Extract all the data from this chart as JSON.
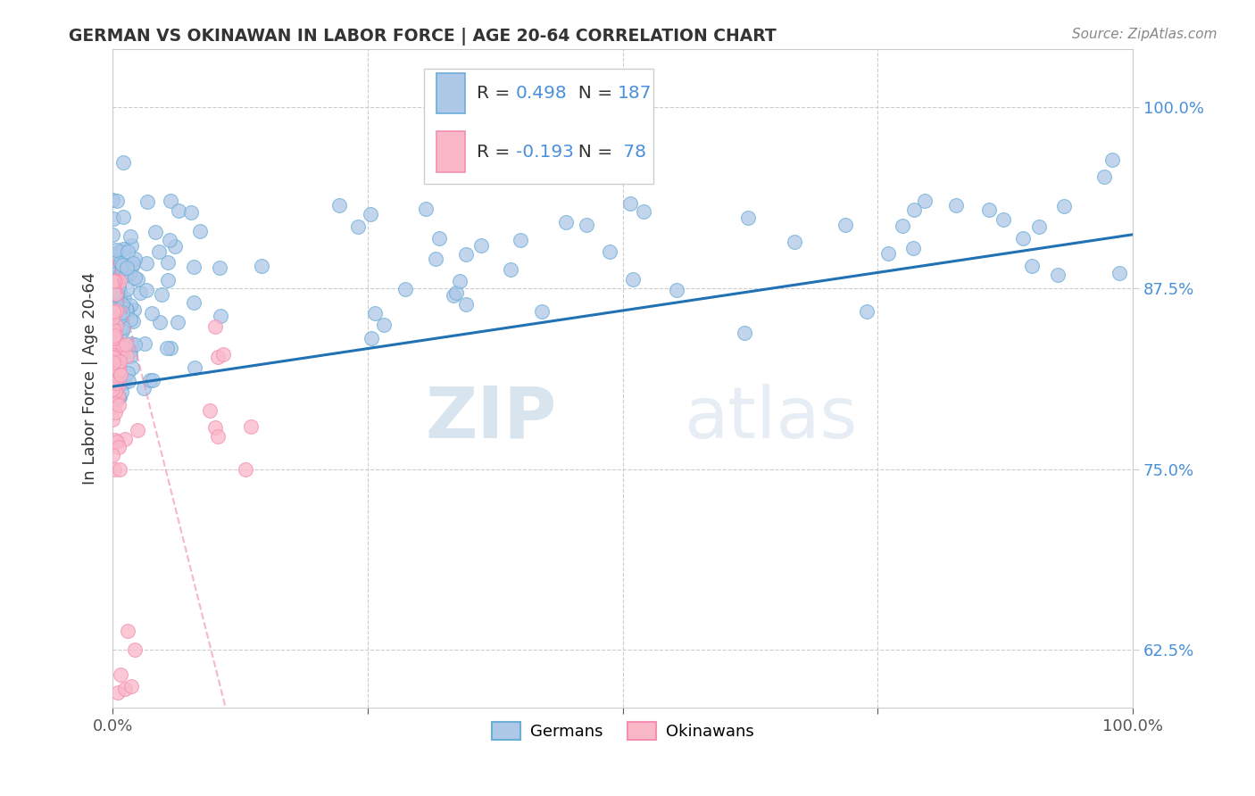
{
  "title": "GERMAN VS OKINAWAN IN LABOR FORCE | AGE 20-64 CORRELATION CHART",
  "source_text": "Source: ZipAtlas.com",
  "ylabel": "In Labor Force | Age 20-64",
  "xlim": [
    0.0,
    1.0
  ],
  "ylim": [
    0.585,
    1.04
  ],
  "ytick_positions": [
    0.625,
    0.75,
    0.875,
    1.0
  ],
  "ytick_labels": [
    "62.5%",
    "75.0%",
    "87.5%",
    "100.0%"
  ],
  "watermark_zip": "ZIP",
  "watermark_atlas": "atlas",
  "legend_label_blue": "Germans",
  "legend_label_pink": "Okinawans",
  "blue_face": "#aec8e8",
  "blue_edge": "#6baed6",
  "pink_face": "#f9b8c8",
  "pink_edge": "#f48fb1",
  "trend_blue_color": "#2171b5",
  "trend_pink_color": "#f48fb1",
  "R_blue": 0.498,
  "N_blue": 187,
  "R_pink": -0.193,
  "N_pink": 78,
  "background_color": "#ffffff",
  "grid_color": "#cccccc",
  "tick_label_color": "#4a90d9",
  "legend_R_color": "#333333",
  "legend_N_color": "#4a90d9"
}
